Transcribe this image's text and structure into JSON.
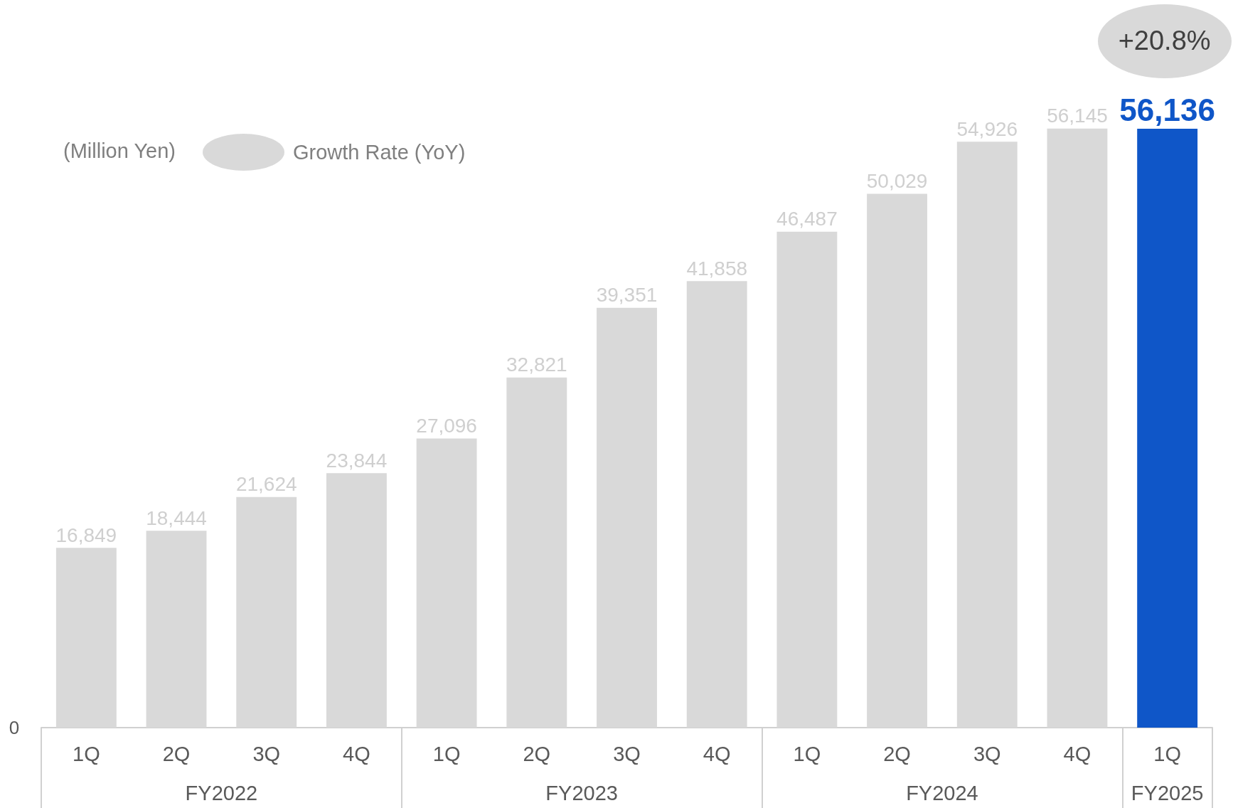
{
  "chart_data": {
    "type": "bar",
    "categories": [
      "1Q",
      "2Q",
      "3Q",
      "4Q",
      "1Q",
      "2Q",
      "3Q",
      "4Q",
      "1Q",
      "2Q",
      "3Q",
      "4Q",
      "1Q"
    ],
    "values": [
      16849,
      18444,
      21624,
      23844,
      27096,
      32821,
      39351,
      41858,
      46487,
      50029,
      54926,
      56145,
      56136
    ],
    "value_labels": [
      "16,849",
      "18,444",
      "21,624",
      "23,844",
      "27,096",
      "32,821",
      "39,351",
      "41,858",
      "46,487",
      "50,029",
      "54,926",
      "56,145",
      "56,136"
    ],
    "colors": [
      "#d9d9d9",
      "#d9d9d9",
      "#d9d9d9",
      "#d9d9d9",
      "#d9d9d9",
      "#d9d9d9",
      "#d9d9d9",
      "#d9d9d9",
      "#d9d9d9",
      "#d9d9d9",
      "#d9d9d9",
      "#d9d9d9",
      "#0f56c8"
    ],
    "annotations": [
      "0",
      "(Million Yen)",
      "Growth Rate (YoY)",
      "+20.8%",
      "FY2022",
      "FY2023",
      "FY2024",
      "FY2025"
    ]
  }
}
